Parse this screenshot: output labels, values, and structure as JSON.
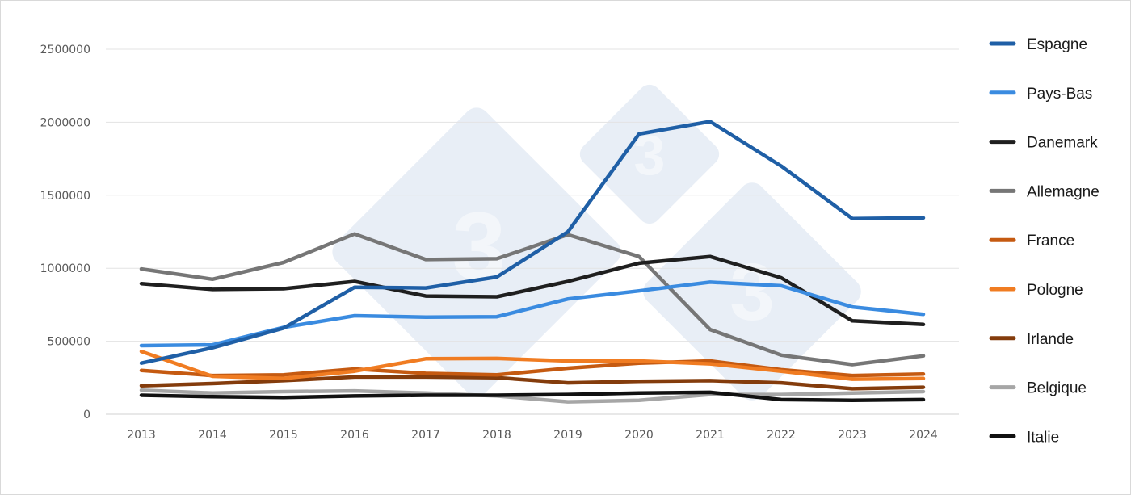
{
  "chart_data": {
    "type": "line",
    "title": "",
    "xlabel": "",
    "ylabel": "",
    "ylim": [
      0,
      2500000
    ],
    "yticks": [
      0,
      500000,
      1000000,
      1500000,
      2000000,
      2500000
    ],
    "ytick_labels": [
      "0",
      "500000",
      "1000000",
      "1500000",
      "2000000",
      "2500000"
    ],
    "grid": "horizontal",
    "legend_position": "right",
    "categories": [
      "2013",
      "2014",
      "2015",
      "2016",
      "2017",
      "2018",
      "2019",
      "2020",
      "2021",
      "2022",
      "2023",
      "2024"
    ],
    "series": [
      {
        "name": "Espagne",
        "color": "#1f5fa6",
        "values": [
          350000,
          455000,
          590000,
          870000,
          865000,
          940000,
          1250000,
          1920000,
          2005000,
          1700000,
          1340000,
          1345000
        ]
      },
      {
        "name": "Pays-Bas",
        "color": "#3a8be0",
        "values": [
          470000,
          475000,
          595000,
          675000,
          665000,
          668000,
          790000,
          845000,
          905000,
          880000,
          735000,
          685000
        ]
      },
      {
        "name": "Danemark",
        "color": "#1f1f1f",
        "values": [
          895000,
          855000,
          860000,
          910000,
          810000,
          805000,
          910000,
          1035000,
          1080000,
          935000,
          640000,
          615000
        ]
      },
      {
        "name": "Allemagne",
        "color": "#767676",
        "values": [
          995000,
          925000,
          1040000,
          1235000,
          1060000,
          1065000,
          1230000,
          1080000,
          580000,
          405000,
          340000,
          400000
        ]
      },
      {
        "name": "France",
        "color": "#c55a11",
        "values": [
          300000,
          265000,
          270000,
          310000,
          280000,
          270000,
          315000,
          350000,
          365000,
          305000,
          265000,
          275000
        ]
      },
      {
        "name": "Pologne",
        "color": "#f07c22",
        "values": [
          430000,
          260000,
          245000,
          295000,
          380000,
          382000,
          365000,
          365000,
          345000,
          295000,
          240000,
          245000
        ]
      },
      {
        "name": "Irlande",
        "color": "#843c0c",
        "values": [
          195000,
          210000,
          230000,
          255000,
          255000,
          250000,
          215000,
          225000,
          230000,
          215000,
          175000,
          185000
        ]
      },
      {
        "name": "Belgique",
        "color": "#a6a6a6",
        "values": [
          165000,
          145000,
          155000,
          160000,
          145000,
          125000,
          85000,
          95000,
          135000,
          135000,
          145000,
          155000
        ]
      },
      {
        "name": "Italie",
        "color": "#111111",
        "values": [
          130000,
          120000,
          115000,
          125000,
          130000,
          130000,
          135000,
          145000,
          150000,
          100000,
          95000,
          100000
        ]
      }
    ]
  }
}
